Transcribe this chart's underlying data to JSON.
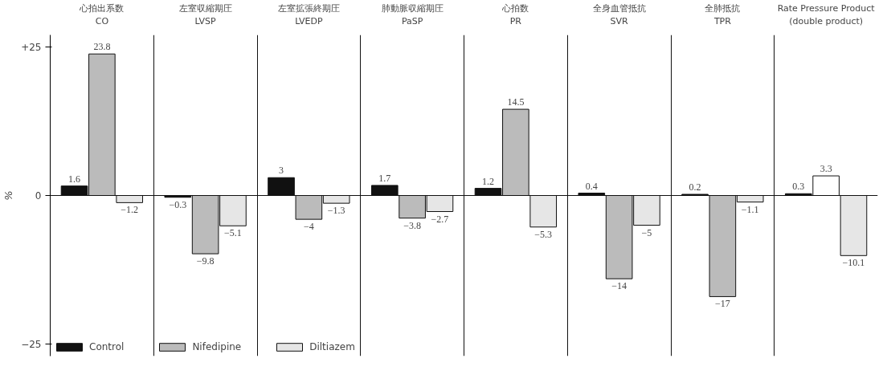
{
  "chart_data": {
    "type": "bar",
    "ylabel": "%",
    "categories": [
      "心拍出系数\nCO",
      "左室収縮期圧\nLVSP",
      "左室拡張終期圧\nLVEDP",
      "肺動脈収縮期圧\nPaSP",
      "心拍数\nPR",
      "全身血管抵抗\nSVR",
      "全肺抵抗\nTPR",
      "Rate Pressure Product\n(double product)"
    ],
    "ylim": [
      -27,
      27
    ],
    "yticks": [
      {
        "value": 25,
        "label": "+25"
      },
      0,
      -25
    ],
    "data_labels": true,
    "legend": "bottom left",
    "grid": "x",
    "ref_lines": [
      {
        "axis": "y",
        "value": 0
      }
    ],
    "series": [
      {
        "name": "Control",
        "color": "#111111",
        "values": [
          1.6,
          -0.3,
          3,
          1.7,
          1.2,
          0.4,
          0.2,
          0.3
        ]
      },
      {
        "name": "Nifedipine",
        "color": "#bbbbbb",
        "colors": [
          null,
          null,
          null,
          null,
          null,
          null,
          null,
          "#ffffff"
        ],
        "values": [
          23.8,
          -9.8,
          -4,
          -3.8,
          14.5,
          -14,
          -17,
          3.3
        ]
      },
      {
        "name": "Diltiazem",
        "color": "#e6e6e6",
        "values": [
          -1.2,
          -5.1,
          -1.3,
          -2.7,
          -5.3,
          -5,
          -1.1,
          -10.1
        ]
      }
    ]
  }
}
